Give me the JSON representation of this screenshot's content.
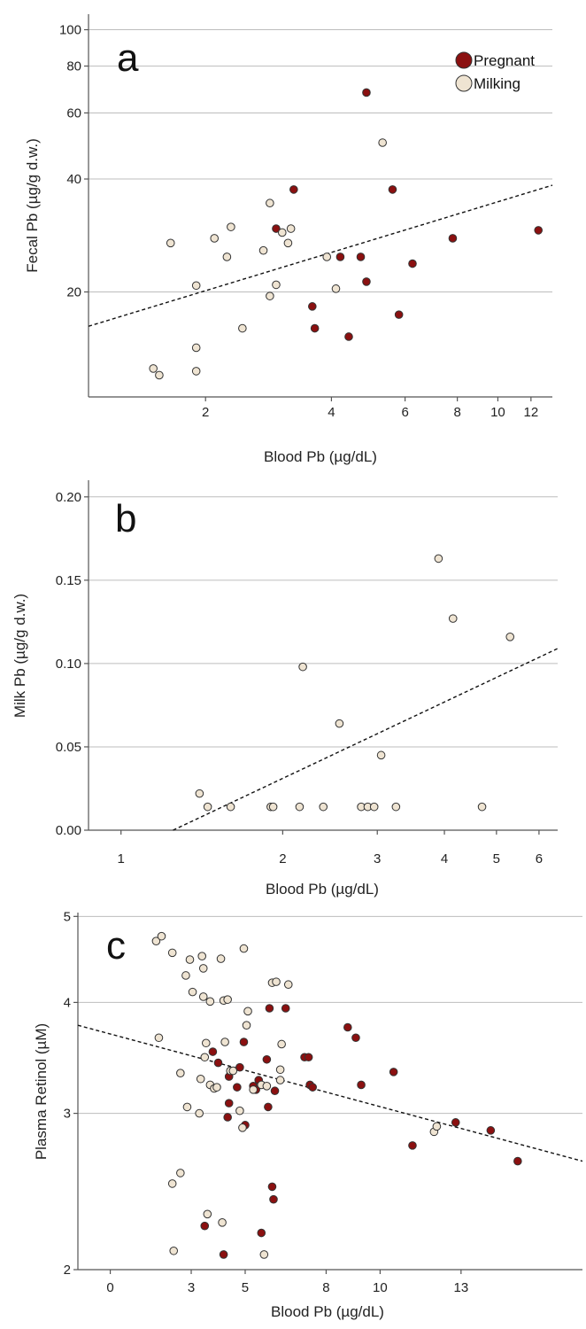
{
  "colors": {
    "pregnant": "#8b1010",
    "milking": "#efe4d2",
    "marker_stroke": "#333333"
  },
  "legend": {
    "placement": "top-right",
    "items": [
      "Pregnant",
      "Milking"
    ]
  },
  "chart_data": [
    {
      "type": "scatter",
      "panel": "a",
      "xlabel": "Blood Pb (µg/dL)",
      "ylabel": "Fecal Pb (µg/g d.w.)",
      "xscale": "log",
      "yscale": "log",
      "xlim": [
        1.05,
        13.5
      ],
      "ylim": [
        10.5,
        110
      ],
      "xticks": [
        2,
        4,
        6,
        8,
        10,
        12
      ],
      "yticks": [
        20,
        40,
        60,
        80,
        100
      ],
      "trend": {
        "style": "dashed",
        "from": [
          1.05,
          16.2
        ],
        "to": [
          13.5,
          38.5
        ]
      },
      "series": [
        {
          "name": "Pregnant",
          "points": [
            [
              2.95,
              29.5
            ],
            [
              3.25,
              37.5
            ],
            [
              3.6,
              18.3
            ],
            [
              3.65,
              16.0
            ],
            [
              4.2,
              24.8
            ],
            [
              4.4,
              15.2
            ],
            [
              4.7,
              24.8
            ],
            [
              4.85,
              21.3
            ],
            [
              4.85,
              68.0
            ],
            [
              5.6,
              37.5
            ],
            [
              5.8,
              17.4
            ],
            [
              6.25,
              23.8
            ],
            [
              7.8,
              27.8
            ],
            [
              12.5,
              29.2
            ]
          ]
        },
        {
          "name": "Milking",
          "points": [
            [
              1.5,
              12.5
            ],
            [
              1.55,
              12.0
            ],
            [
              1.65,
              27.0
            ],
            [
              1.9,
              12.3
            ],
            [
              1.9,
              14.2
            ],
            [
              1.9,
              20.8
            ],
            [
              2.1,
              27.8
            ],
            [
              2.25,
              24.8
            ],
            [
              2.3,
              29.8
            ],
            [
              2.45,
              16.0
            ],
            [
              2.75,
              25.8
            ],
            [
              2.85,
              19.5
            ],
            [
              2.85,
              34.5
            ],
            [
              2.95,
              20.9
            ],
            [
              3.05,
              28.8
            ],
            [
              3.15,
              27.0
            ],
            [
              3.2,
              29.5
            ],
            [
              3.9,
              24.8
            ],
            [
              4.1,
              20.4
            ],
            [
              5.3,
              50.0
            ]
          ]
        }
      ]
    },
    {
      "type": "scatter",
      "panel": "b",
      "xlabel": "Blood Pb (µg/dL)",
      "ylabel": "Milk Pb (µg/g d.w.)",
      "xscale": "log",
      "yscale": "linear",
      "xlim": [
        0.87,
        6.5
      ],
      "ylim": [
        0,
        0.21
      ],
      "xticks": [
        1,
        2,
        3,
        4,
        5,
        6
      ],
      "yticks": [
        "0.00",
        "0.05",
        "0.10",
        "0.15",
        "0.20"
      ],
      "trend": {
        "style": "dashed",
        "from": [
          1.25,
          0
        ],
        "to": [
          6.5,
          0.109
        ]
      },
      "series": [
        {
          "name": "Milking",
          "points": [
            [
              1.4,
              0.022
            ],
            [
              1.45,
              0.014
            ],
            [
              1.6,
              0.014
            ],
            [
              1.9,
              0.014
            ],
            [
              1.92,
              0.014
            ],
            [
              2.15,
              0.014
            ],
            [
              2.18,
              0.098
            ],
            [
              2.38,
              0.014
            ],
            [
              2.55,
              0.064
            ],
            [
              2.8,
              0.014
            ],
            [
              2.88,
              0.014
            ],
            [
              2.96,
              0.014
            ],
            [
              3.05,
              0.045
            ],
            [
              3.25,
              0.014
            ],
            [
              3.9,
              0.163
            ],
            [
              4.15,
              0.127
            ],
            [
              4.7,
              0.014
            ],
            [
              5.3,
              0.116
            ]
          ]
        }
      ]
    },
    {
      "type": "scatter",
      "panel": "c",
      "xlabel": "Blood Pb (µg/dL)",
      "ylabel": "Plasma Retinol (µM)",
      "xscale": "linear",
      "yscale": "log",
      "xlim": [
        -1.2,
        17.5
      ],
      "ylim": [
        2.0,
        5.05
      ],
      "xticks": [
        0,
        3,
        5,
        8,
        10,
        13
      ],
      "yticks": [
        2,
        3,
        4,
        5
      ],
      "trend": {
        "style": "dashed",
        "from": [
          -1.2,
          3.77
        ],
        "to": [
          17.5,
          2.65
        ]
      },
      "series": [
        {
          "name": "Pregnant",
          "points": [
            [
              3.5,
              2.24
            ],
            [
              3.8,
              3.52
            ],
            [
              4.0,
              3.42
            ],
            [
              4.2,
              2.08
            ],
            [
              4.35,
              2.97
            ],
            [
              4.4,
              3.08
            ],
            [
              4.4,
              3.3
            ],
            [
              4.7,
              3.21
            ],
            [
              4.8,
              3.38
            ],
            [
              4.95,
              3.61
            ],
            [
              5.0,
              2.91
            ],
            [
              5.3,
              3.22
            ],
            [
              5.4,
              3.19
            ],
            [
              5.5,
              3.27
            ],
            [
              5.6,
              2.2
            ],
            [
              5.8,
              3.45
            ],
            [
              5.85,
              3.05
            ],
            [
              5.9,
              3.94
            ],
            [
              6.0,
              2.48
            ],
            [
              6.05,
              2.4
            ],
            [
              6.1,
              3.18
            ],
            [
              6.5,
              3.94
            ],
            [
              7.2,
              3.47
            ],
            [
              7.35,
              3.47
            ],
            [
              7.4,
              3.23
            ],
            [
              7.5,
              3.21
            ],
            [
              8.8,
              3.75
            ],
            [
              9.1,
              3.65
            ],
            [
              9.3,
              3.23
            ],
            [
              10.5,
              3.34
            ],
            [
              11.2,
              2.76
            ],
            [
              12.8,
              2.93
            ],
            [
              14.1,
              2.87
            ],
            [
              15.1,
              2.65
            ]
          ]
        },
        {
          "name": "Milking",
          "points": [
            [
              1.7,
              4.69
            ],
            [
              1.8,
              3.65
            ],
            [
              1.9,
              4.75
            ],
            [
              2.3,
              4.55
            ],
            [
              2.3,
              2.5
            ],
            [
              2.35,
              2.1
            ],
            [
              2.6,
              3.33
            ],
            [
              2.6,
              2.57
            ],
            [
              2.8,
              4.29
            ],
            [
              2.85,
              3.05
            ],
            [
              2.95,
              4.47
            ],
            [
              3.05,
              4.11
            ],
            [
              3.3,
              3.0
            ],
            [
              3.35,
              3.28
            ],
            [
              3.4,
              4.51
            ],
            [
              3.45,
              4.37
            ],
            [
              3.45,
              4.06
            ],
            [
              3.5,
              3.47
            ],
            [
              3.55,
              3.6
            ],
            [
              3.6,
              2.31
            ],
            [
              3.7,
              4.01
            ],
            [
              3.7,
              3.23
            ],
            [
              3.85,
              3.2
            ],
            [
              3.95,
              3.21
            ],
            [
              4.1,
              4.48
            ],
            [
              4.15,
              2.26
            ],
            [
              4.2,
              4.02
            ],
            [
              4.25,
              3.61
            ],
            [
              4.35,
              4.03
            ],
            [
              4.45,
              3.35
            ],
            [
              4.55,
              3.35
            ],
            [
              4.8,
              3.02
            ],
            [
              4.9,
              2.89
            ],
            [
              4.95,
              4.6
            ],
            [
              5.05,
              3.77
            ],
            [
              5.1,
              3.91
            ],
            [
              5.3,
              3.19
            ],
            [
              5.6,
              3.23
            ],
            [
              5.7,
              2.08
            ],
            [
              5.8,
              3.22
            ],
            [
              6.0,
              4.21
            ],
            [
              6.15,
              4.22
            ],
            [
              6.3,
              3.36
            ],
            [
              6.3,
              3.27
            ],
            [
              6.35,
              3.59
            ],
            [
              6.6,
              4.19
            ],
            [
              12.0,
              2.86
            ],
            [
              12.1,
              2.9
            ]
          ]
        }
      ]
    }
  ]
}
